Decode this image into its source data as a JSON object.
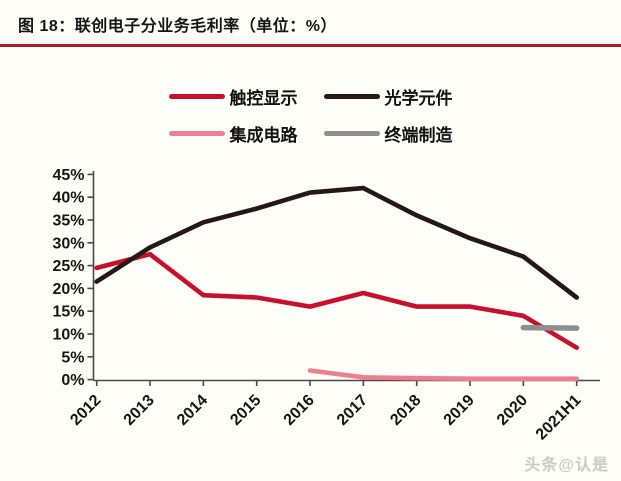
{
  "title": "图 18：联创电子分业务毛利率（单位：%）",
  "watermark": "头条@认是",
  "colors": {
    "title_divider_red": "#a81e24",
    "axis": "#4a4a4a",
    "watermark_gray": "#cbcbc7"
  },
  "chart_data": {
    "type": "line",
    "title": "联创电子分业务毛利率（单位：%）",
    "xlabel": "",
    "ylabel": "",
    "ylim": [
      0,
      45
    ],
    "ytick_step": 5,
    "grid": false,
    "legend_position": "top",
    "categories": [
      "2012",
      "2013",
      "2014",
      "2015",
      "2016",
      "2017",
      "2018",
      "2019",
      "2020",
      "2021H1"
    ],
    "ytick_labels": [
      "0%",
      "5%",
      "10%",
      "15%",
      "20%",
      "25%",
      "30%",
      "35%",
      "40%",
      "45%"
    ],
    "series": [
      {
        "name": "触控显示",
        "color": "#c8102e",
        "width": 4.6,
        "values": [
          24.5,
          27.5,
          18.5,
          18.0,
          16.0,
          19.0,
          16.0,
          16.0,
          14.0,
          7.0
        ]
      },
      {
        "name": "光学元件",
        "color": "#231815",
        "width": 4.6,
        "values": [
          21.5,
          29.0,
          34.5,
          37.5,
          41.0,
          42.0,
          36.0,
          31.0,
          27.0,
          18.0
        ]
      },
      {
        "name": "集成电路",
        "color": "#ef7f90",
        "width": 4.6,
        "values": [
          null,
          null,
          null,
          null,
          2.0,
          0.5,
          0.3,
          0.2,
          0.2,
          0.2
        ]
      },
      {
        "name": "终端制造",
        "color": "#8e8e8e",
        "width": 5.5,
        "values": [
          null,
          null,
          null,
          null,
          null,
          null,
          null,
          null,
          11.4,
          11.3
        ]
      }
    ]
  }
}
